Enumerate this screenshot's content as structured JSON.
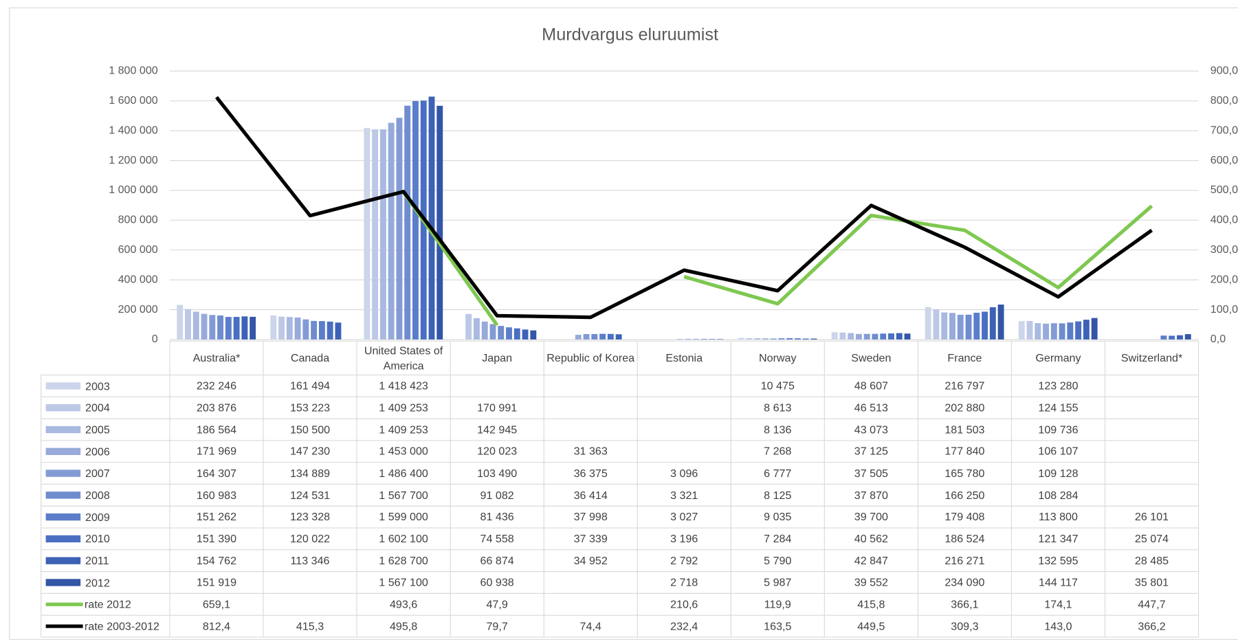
{
  "chart_data": {
    "type": "bar",
    "title": "Murdvargus eluruumist",
    "categories": [
      "Australia*",
      "Canada",
      "United States of America",
      "Japan",
      "Republic of Korea",
      "Estonia",
      "Norway",
      "Sweden",
      "France",
      "Germany",
      "Switzerland*"
    ],
    "ylim": [
      0,
      1800000
    ],
    "yticks": [
      0,
      {
        "value": 200000,
        "label": "200 000"
      },
      {
        "value": 400000,
        "label": "400 000"
      },
      {
        "value": 600000,
        "label": "600 000"
      },
      {
        "value": 800000,
        "label": "800 000"
      },
      {
        "value": 1000000,
        "label": "1 000 000"
      },
      {
        "value": 1200000,
        "label": "1 200 000"
      },
      {
        "value": 1400000,
        "label": "1 400 000"
      },
      {
        "value": 1600000,
        "label": "1 600 000"
      },
      {
        "value": 1800000,
        "label": "1 800 000"
      }
    ],
    "y2lim": [
      0,
      900
    ],
    "y2ticks": [
      {
        "value": 0,
        "label": "0,0"
      },
      {
        "value": 100,
        "label": "100,0"
      },
      {
        "value": 200,
        "label": "200,0"
      },
      {
        "value": 300,
        "label": "300,0"
      },
      {
        "value": 400,
        "label": "400,0"
      },
      {
        "value": 500,
        "label": "500,0"
      },
      {
        "value": 600,
        "label": "600,0"
      },
      {
        "value": 700,
        "label": "700,0"
      },
      {
        "value": 800,
        "label": "800,0"
      },
      {
        "value": 900,
        "label": "900,0"
      }
    ],
    "grid": true,
    "series": [
      {
        "name": "2003",
        "color": "#cdd5ea",
        "values": [
          232246,
          161494,
          1418423,
          null,
          null,
          null,
          10475,
          48607,
          216797,
          123280,
          null
        ],
        "value_labels": [
          "232 246",
          "161 494",
          "1 418 423",
          null,
          null,
          null,
          "10 475",
          "48 607",
          "216 797",
          "123 280",
          null
        ]
      },
      {
        "name": "2004",
        "color": "#bcc8e6",
        "values": [
          203876,
          153223,
          1409253,
          170991,
          null,
          null,
          8613,
          46513,
          202880,
          124155,
          null
        ],
        "value_labels": [
          "203 876",
          "153 223",
          "1 409 253",
          "170 991",
          null,
          null,
          "8 613",
          "46 513",
          "202 880",
          "124 155",
          null
        ]
      },
      {
        "name": "2005",
        "color": "#a9b9e0",
        "values": [
          186564,
          150500,
          1409253,
          142945,
          null,
          null,
          8136,
          43073,
          181503,
          109736,
          null
        ],
        "value_labels": [
          "186 564",
          "150 500",
          "1 409 253",
          "142 945",
          null,
          null,
          "8 136",
          "43 073",
          "181 503",
          "109 736",
          null
        ]
      },
      {
        "name": "2006",
        "color": "#97aada",
        "values": [
          171969,
          147230,
          1453000,
          120023,
          31363,
          null,
          7268,
          37125,
          177840,
          106107,
          null
        ],
        "value_labels": [
          "171 969",
          "147 230",
          "1 453 000",
          "120 023",
          "31 363",
          null,
          "7 268",
          "37 125",
          "177 840",
          "106 107",
          null
        ]
      },
      {
        "name": "2007",
        "color": "#839bd5",
        "values": [
          164307,
          134889,
          1486400,
          103490,
          36375,
          3096,
          6777,
          37505,
          165780,
          109128,
          null
        ],
        "value_labels": [
          "164 307",
          "134 889",
          "1 486 400",
          "103 490",
          "36 375",
          "3 096",
          "6 777",
          "37 505",
          "165 780",
          "109 128",
          null
        ]
      },
      {
        "name": "2008",
        "color": "#6f8ccf",
        "values": [
          160983,
          124531,
          1567700,
          91082,
          36414,
          3321,
          8125,
          37870,
          166250,
          108284,
          null
        ],
        "value_labels": [
          "160 983",
          "124 531",
          "1 567 700",
          "91 082",
          "36 414",
          "3 321",
          "8 125",
          "37 870",
          "166 250",
          "108 284",
          null
        ]
      },
      {
        "name": "2009",
        "color": "#5b7dca",
        "values": [
          151262,
          123328,
          1599000,
          81436,
          37998,
          3027,
          9035,
          39700,
          179408,
          113800,
          26101
        ],
        "value_labels": [
          "151 262",
          "123 328",
          "1 599 000",
          "81 436",
          "37 998",
          "3 027",
          "9 035",
          "39 700",
          "179 408",
          "113 800",
          "26 101"
        ]
      },
      {
        "name": "2010",
        "color": "#4a6fc2",
        "values": [
          151390,
          120022,
          1602100,
          74558,
          37339,
          3196,
          7284,
          40562,
          186524,
          121347,
          25074
        ],
        "value_labels": [
          "151 390",
          "120 022",
          "1 602 100",
          "74 558",
          "37 339",
          "3 196",
          "7 284",
          "40 562",
          "186 524",
          "121 347",
          "25 074"
        ]
      },
      {
        "name": "2011",
        "color": "#3d62b5",
        "values": [
          154762,
          113346,
          1628700,
          66874,
          34952,
          2792,
          5790,
          42847,
          216271,
          132595,
          28485
        ],
        "value_labels": [
          "154 762",
          "113 346",
          "1 628 700",
          "66 874",
          "34 952",
          "2 792",
          "5 790",
          "42 847",
          "216 271",
          "132 595",
          "28 485"
        ]
      },
      {
        "name": "2012",
        "color": "#3356a6",
        "values": [
          151919,
          null,
          1567100,
          60938,
          null,
          2718,
          5987,
          39552,
          234090,
          144117,
          35801
        ],
        "value_labels": [
          "151 919",
          null,
          "1 567 100",
          "60 938",
          null,
          "2 718",
          "5 987",
          "39 552",
          "234 090",
          "144 117",
          "35 801"
        ]
      },
      {
        "name": "rate 2012",
        "type": "line",
        "axis": "y2",
        "color": "#7ec850",
        "values": [
          659.1,
          null,
          493.6,
          47.9,
          null,
          210.6,
          119.9,
          415.8,
          366.1,
          174.1,
          447.7
        ],
        "value_labels": [
          "659,1",
          null,
          "493,6",
          "47,9",
          null,
          "210,6",
          "119,9",
          "415,8",
          "366,1",
          "174,1",
          "447,7"
        ]
      },
      {
        "name": "rate 2003-2012",
        "type": "line",
        "axis": "y2",
        "color": "#000000",
        "values": [
          812.4,
          415.3,
          495.8,
          79.7,
          74.4,
          232.4,
          163.5,
          449.5,
          309.3,
          143.0,
          366.2
        ],
        "value_labels": [
          "812,4",
          "415,3",
          "495,8",
          "79,7",
          "74,4",
          "232,4",
          "163,5",
          "449,5",
          "309,3",
          "143,0",
          "366,2"
        ]
      }
    ]
  }
}
